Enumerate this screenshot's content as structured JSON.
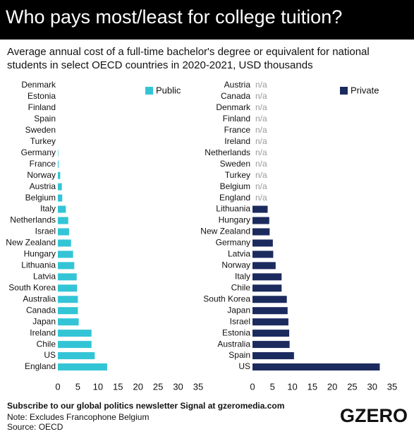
{
  "title": "Who pays most/least for college tuition?",
  "subtitle": "Average annual cost of a full-time bachelor's degree or equivalent for national students in select OECD countries in 2020-2021, USD thousands",
  "footer": {
    "subscribe": "Subscribe to our global politics newsletter Signal at gzeromedia.com",
    "note": "Note: Excludes Francophone Belgium",
    "source": "Source: OECD",
    "logo": "GZERO"
  },
  "chart_data": [
    {
      "type": "bar",
      "legend": "top-right",
      "grid": false,
      "categories": [
        "Denmark",
        "Estonia",
        "Finland",
        "Spain",
        "Sweden",
        "Turkey",
        "Germany",
        "France",
        "Norway",
        "Austria",
        "Belgium",
        "Italy",
        "Netherlands",
        "Israel",
        "New Zealand",
        "Hungary",
        "Lithuania",
        "Latvia",
        "South Korea",
        "Australia",
        "Canada",
        "Japan",
        "Ireland",
        "Chile",
        "US",
        "England"
      ],
      "series": [
        {
          "name": "Public",
          "color": "#33c5d6",
          "values": [
            0,
            0,
            0,
            0,
            0,
            0,
            0.1,
            0.2,
            0.6,
            1.0,
            1.1,
            2.0,
            2.6,
            2.8,
            3.3,
            3.8,
            4.1,
            4.7,
            4.8,
            5.0,
            5.0,
            5.2,
            8.4,
            8.4,
            9.2,
            12.3
          ]
        }
      ],
      "xlim": [
        0,
        35
      ],
      "xticks": [
        0,
        5,
        10,
        15,
        20,
        25,
        30,
        35
      ]
    },
    {
      "type": "bar",
      "legend": "top-right",
      "grid": false,
      "categories": [
        "Austria",
        "Canada",
        "Denmark",
        "Finland",
        "France",
        "Ireland",
        "Netherlands",
        "Sweden",
        "Turkey",
        "Belgium",
        "England",
        "Lithuania",
        "Hungary",
        "New Zealand",
        "Germany",
        "Latvia",
        "Norway",
        "Italy",
        "Chile",
        "South Korea",
        "Japan",
        "Israel",
        "Estonia",
        "Australia",
        "Spain",
        "US"
      ],
      "series": [
        {
          "name": "Private",
          "color": "#1c2b5e",
          "values": [
            null,
            null,
            null,
            null,
            null,
            null,
            null,
            null,
            null,
            null,
            null,
            3.8,
            4.2,
            4.3,
            5.1,
            5.2,
            5.8,
            7.3,
            7.3,
            8.6,
            8.8,
            9.0,
            9.2,
            9.3,
            10.4,
            31.9
          ],
          "value_labels": [
            "n/a",
            "n/a",
            "n/a",
            "n/a",
            "n/a",
            "n/a",
            "n/a",
            "n/a",
            "n/a",
            "n/a",
            "n/a",
            null,
            null,
            null,
            null,
            null,
            null,
            null,
            null,
            null,
            null,
            null,
            null,
            null,
            null,
            null
          ]
        }
      ],
      "xlim": [
        0,
        35
      ],
      "xticks": [
        0,
        5,
        10,
        15,
        20,
        25,
        30,
        35
      ]
    }
  ]
}
